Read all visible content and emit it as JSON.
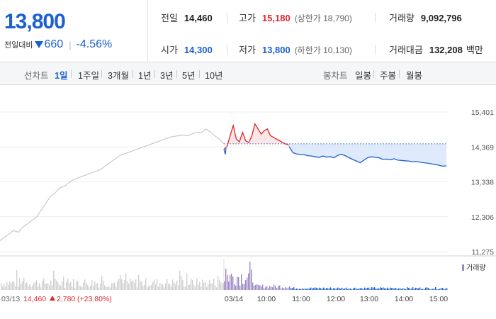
{
  "quote": {
    "price": "13,800",
    "change_label": "전일대비",
    "change_amount": "660",
    "change_rate": "-4.56%",
    "direction": "down"
  },
  "stats": {
    "prev_close_label": "전일",
    "prev_close": "14,460",
    "high_label": "고가",
    "high": "15,180",
    "upper_limit_text": "(상한가 18,790)",
    "volume_label": "거래량",
    "volume": "9,092,796",
    "open_label": "시가",
    "open": "14,300",
    "low_label": "저가",
    "low": "13,800",
    "lower_limit_text": "(하한가 10,130)",
    "value_label": "거래대금",
    "value": "132,208",
    "value_unit": "백만"
  },
  "period_tabs": {
    "label": "선차트",
    "items": [
      "1일",
      "1주일",
      "3개월",
      "1년",
      "3년",
      "5년",
      "10년"
    ],
    "active": "1일"
  },
  "candle_tabs": {
    "label": "봉차트",
    "items": [
      "일봉",
      "주봉",
      "월봉"
    ]
  },
  "colors": {
    "up": "#e0262b",
    "down": "#1b5fd1",
    "prev_day_line": "#c8c8c8",
    "volume_today": "#9c88c4",
    "volume_prev": "#d0d0d0"
  },
  "chart": {
    "y_ticks": [
      "15,401",
      "14,369",
      "13,338",
      "12,306",
      "11,275"
    ],
    "x_ticks": [
      "03/14",
      "10:00",
      "11:00",
      "12:00",
      "13:00",
      "14:00",
      "15:00"
    ],
    "prev_day_date": "03/13",
    "prev_day_close": "14,460",
    "prev_day_change": "2,780",
    "prev_day_rate": "(+23.80%)",
    "volume_legend": "거래량"
  },
  "chart_data": {
    "type": "line",
    "ylim": [
      11275,
      15401
    ],
    "reference": 14460,
    "series": [
      {
        "values": [
          11600,
          11700,
          11800,
          11900,
          11850,
          12000,
          12100,
          12200,
          12300,
          12500,
          12700,
          12900,
          13000,
          13150,
          13200,
          13300,
          13400,
          13450,
          13500,
          13550,
          13600,
          13650,
          13700,
          13800,
          13900,
          14000,
          14100,
          14150,
          14200,
          14250,
          14300,
          14350,
          14400,
          14450,
          14500,
          14550,
          14600,
          14650,
          14680,
          14700,
          14720,
          14700,
          14750,
          14800,
          14780,
          14900,
          14820,
          14700,
          14600,
          14460
        ]
      },
      {
        "values": [
          14300,
          14380,
          14700,
          15000,
          14600,
          14520,
          14800,
          14550,
          14500,
          14700,
          15050,
          14900,
          14750,
          14850,
          14900,
          14700,
          14650,
          14600,
          14550,
          14500,
          14450,
          14420
        ]
      },
      {
        "values": [
          14380,
          14200,
          14160,
          14150,
          14140,
          14110,
          14100,
          14080,
          14060,
          14100,
          14070,
          14080,
          14050,
          14120,
          14150,
          14110,
          14050,
          14000,
          13950,
          13900,
          13980,
          14050,
          14080,
          14060,
          14050,
          14000,
          14010,
          13990,
          14020,
          13980,
          13970,
          13960,
          13950,
          13930,
          13940,
          13920,
          13900,
          13890,
          13870,
          13850,
          13830,
          13800,
          13810
        ]
      }
    ]
  }
}
